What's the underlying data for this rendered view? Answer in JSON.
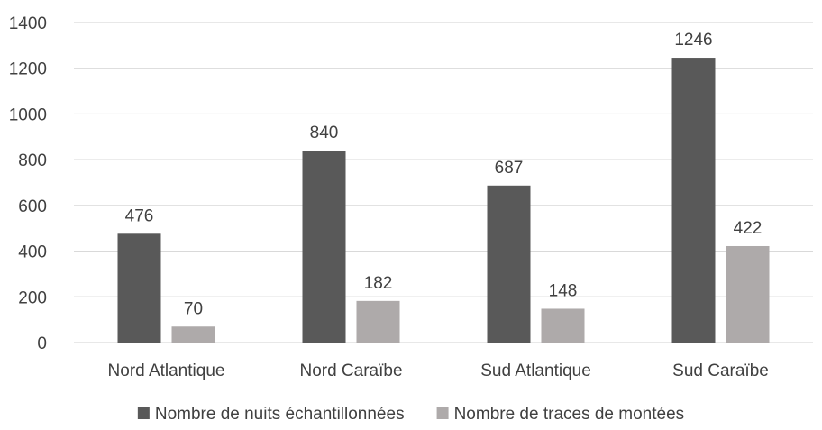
{
  "chart_data": {
    "type": "bar",
    "title": "",
    "xlabel": "",
    "ylabel": "",
    "categories": [
      "Nord Atlantique",
      "Nord Caraïbe",
      "Sud Atlantique",
      "Sud Caraïbe"
    ],
    "series": [
      {
        "name": "Nombre de nuits échantillonnées",
        "color": "#595959",
        "values": [
          476,
          840,
          687,
          1246
        ],
        "labels": [
          "476",
          "840",
          "687",
          "1246"
        ]
      },
      {
        "name": "Nombre de traces de montées",
        "color": "#aeaaaa",
        "values": [
          70,
          182,
          148,
          422
        ],
        "labels": [
          "70",
          "182",
          "148",
          "422"
        ]
      }
    ],
    "ylim": [
      0,
      1400
    ],
    "yticks": [
      0,
      200,
      400,
      600,
      800,
      1000,
      1200,
      1400
    ],
    "ytick_labels": [
      "0",
      "200",
      "400",
      "600",
      "800",
      "1000",
      "1200",
      "1400"
    ],
    "grid": "horizontal",
    "legend_position": "bottom",
    "gridline_color": "#d9d9d9",
    "axis_line_color": "#d9d9d9"
  }
}
